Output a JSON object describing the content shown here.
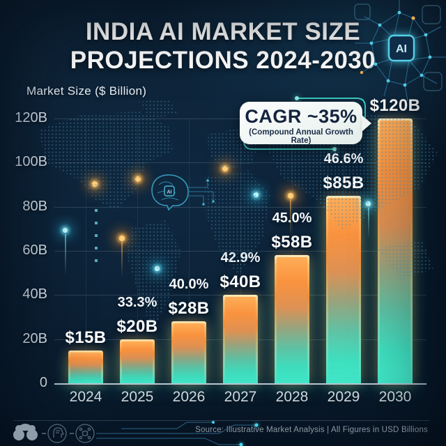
{
  "title": {
    "line1": "INDIA AI MARKET SIZE",
    "line2": "PROJECTIONS 2024-2030"
  },
  "axis_label": "Market Size ($ Billion)",
  "cagr": {
    "headline": "CAGR ~35%",
    "subtext": "(Compound Annual Growth Rate)"
  },
  "footer": {
    "source": "Source: Illustrative Market Analysis | All Figures in USD Billions"
  },
  "decor": {
    "ai_chip_label": "AI",
    "ai_chip_label_small": "AI"
  },
  "colors": {
    "background": "#0b1e31",
    "bar_top": "#f9923f",
    "bar_bottom": "#3fe2c2",
    "bar_border_top": "#ffedbe",
    "callout_bg": "#f2f7f5",
    "accent_teal": "#43e0d0",
    "text_primary": "#ffffff",
    "text_muted": "#c3cfdc"
  },
  "chart_data": {
    "type": "bar",
    "title": "India AI Market Size Projections 2024-2030",
    "categories": [
      "2024",
      "2025",
      "2026",
      "2027",
      "2028",
      "2029",
      "2030"
    ],
    "values": [
      15,
      20,
      28,
      40,
      58,
      85,
      120
    ],
    "value_labels": [
      "$15B",
      "$20B",
      "$28B",
      "$40B",
      "$58B",
      "$85B",
      "$120B"
    ],
    "growth_labels": [
      null,
      "33.3%",
      "40.0%",
      "42.9%",
      "45.0%",
      "46.6%",
      null
    ],
    "cagr": "~35%",
    "xlabel": "",
    "ylabel": "Market Size ($ Billion)",
    "ytick_values": [
      0,
      20,
      40,
      60,
      80,
      100,
      120
    ],
    "ytick_labels": [
      "0",
      "20B",
      "40B",
      "60B",
      "80B",
      "100B",
      "120B"
    ],
    "ylim": [
      0,
      120
    ],
    "grid": true,
    "legend": false,
    "unit": "USD Billions"
  }
}
